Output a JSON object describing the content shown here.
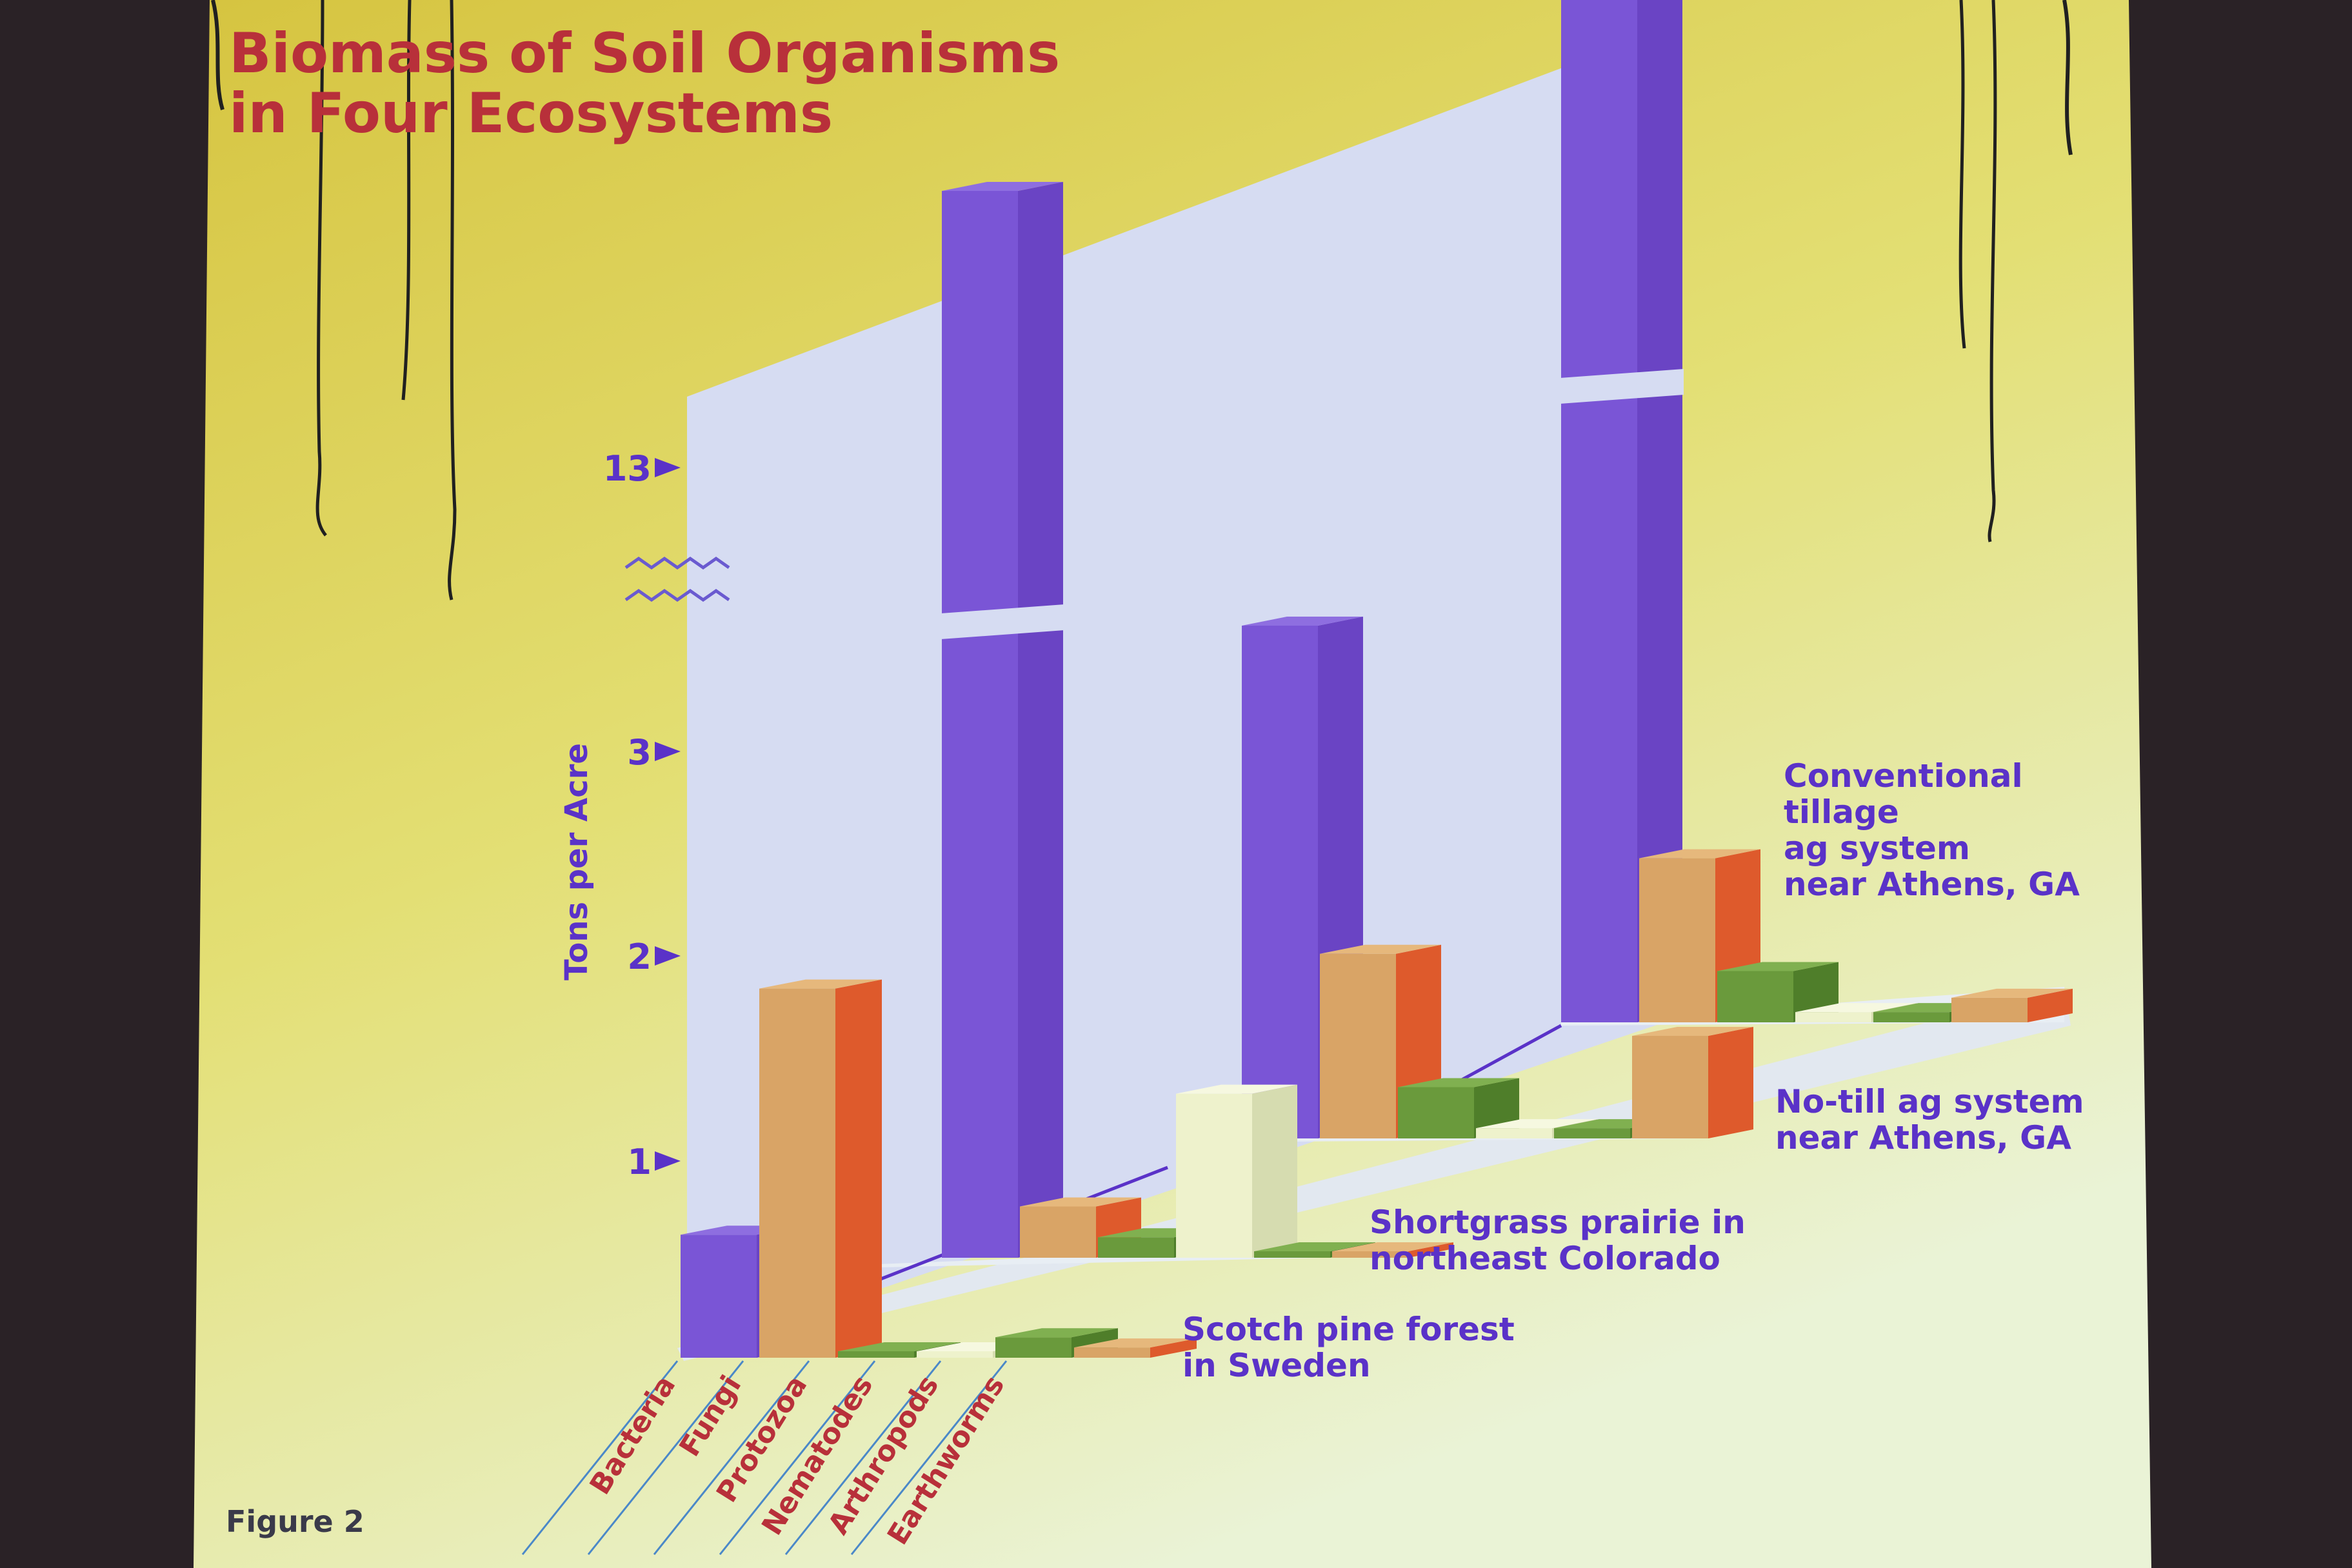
{
  "colors": {
    "bacteria": "#7a55d6",
    "fungi_front": "#d9a466",
    "fungi_side": "#de5a2c",
    "protozoa": "#6a9a3c",
    "nematodes": "#eef2cc",
    "arthropods": "#6a9a3c",
    "earthworms": "#d9a466",
    "text_purple": "#5a32c8",
    "title_red": "#b8303a"
  },
  "chart_data": {
    "type": "bar",
    "title": "Biomass of Soil Organisms in Four Ecosystems",
    "title_lines": [
      "Biomass of Soil Organisms",
      "in Four Ecosystems"
    ],
    "ylabel": "Tons per Acre",
    "y_ticks": [
      "1",
      "2",
      "3",
      "13"
    ],
    "axis_break": true,
    "categories": [
      "Bacteria",
      "Fungi",
      "Protozoa",
      "Nematodes",
      "Arthropods",
      "Earthworms"
    ],
    "series": [
      {
        "name": "Scotch pine forest in Sweden",
        "label_lines": [
          "Scotch pine forest",
          "in Sweden"
        ],
        "values": [
          0.6,
          1.8,
          0.01,
          0.01,
          0.1,
          0.05
        ]
      },
      {
        "name": "Shortgrass prairie in northeast Colorado",
        "label_lines": [
          "Shortgrass prairie in",
          "northeast Colorado"
        ],
        "values": [
          13.5,
          0.25,
          0.1,
          0.8,
          0.02,
          0.0
        ]
      },
      {
        "name": "No-till ag system near Athens, GA",
        "label_lines": [
          "No-till ag system",
          "near Athens, GA"
        ],
        "values": [
          2.5,
          0.9,
          0.25,
          0.05,
          0.05,
          0.5
        ]
      },
      {
        "name": "Conventional tillage ag system near Athens, GA",
        "label_lines": [
          "Conventional",
          "tillage",
          "ag system",
          "near Athens, GA"
        ],
        "values": [
          13.5,
          0.8,
          0.25,
          0.05,
          0.05,
          0.12
        ]
      }
    ]
  },
  "figure_label": "Figure 2"
}
